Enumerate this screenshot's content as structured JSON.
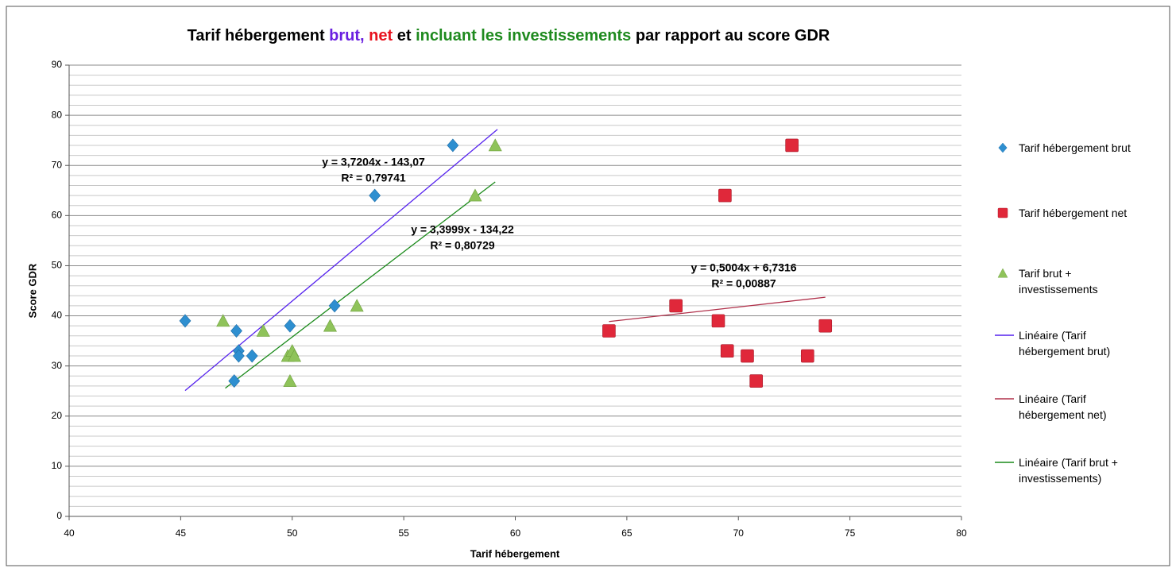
{
  "chart_data": {
    "type": "scatter",
    "title_parts": [
      {
        "text": "Tarif hébergement ",
        "color": "#000000"
      },
      {
        "text": "brut,",
        "color": "#6a1fe0"
      },
      {
        "text": " net",
        "color": "#e8121e"
      },
      {
        "text": " et ",
        "color": "#000000"
      },
      {
        "text": "incluant les investissements",
        "color": "#1e8a1e"
      },
      {
        "text": " par rapport au score GDR",
        "color": "#000000"
      }
    ],
    "x_label": "Tarif hébergement",
    "y_label": "Score GDR",
    "xlim": [
      40,
      80
    ],
    "xticks": [
      40,
      45,
      50,
      55,
      60,
      65,
      70,
      75,
      80
    ],
    "ylim": [
      0,
      90
    ],
    "yticks": [
      0,
      10,
      20,
      30,
      40,
      50,
      60,
      70,
      80,
      90
    ],
    "yminorticks": [
      2,
      4,
      6,
      8,
      12,
      14,
      16,
      18,
      22,
      24,
      26,
      28,
      32,
      34,
      36,
      38,
      42,
      44,
      46,
      48,
      52,
      54,
      56,
      58,
      62,
      64,
      66,
      68,
      72,
      74,
      76,
      78,
      82,
      84,
      86,
      88
    ],
    "grid": true,
    "legend": "right",
    "series": [
      {
        "name": "Tarif hébergement brut",
        "color": "#2e8fd0",
        "marker": "diamond",
        "x": [
          45.2,
          47.5,
          47.6,
          47.6,
          48.2,
          47.4,
          49.9,
          51.9,
          53.7,
          57.2
        ],
        "values": [
          39,
          37,
          33,
          32,
          32,
          27,
          38,
          42,
          64,
          74
        ]
      },
      {
        "name": "Tarif hébergement net",
        "color": "#e0283a",
        "marker": "square",
        "x": [
          64.2,
          67.2,
          69.4,
          69.1,
          69.5,
          70.4,
          70.8,
          72.4,
          73.1,
          73.9
        ],
        "values": [
          37,
          42,
          64,
          39,
          33,
          32,
          27,
          74,
          32,
          38
        ]
      },
      {
        "name": "Tarif brut + investissements",
        "color": "#8fc35a",
        "marker": "triangle",
        "x": [
          46.9,
          48.7,
          49.9,
          49.8,
          50.0,
          50.1,
          51.7,
          52.9,
          58.2,
          59.1
        ],
        "values": [
          39,
          37,
          27,
          32,
          33,
          32,
          38,
          42,
          64,
          74
        ]
      }
    ],
    "trendlines": [
      {
        "name": "Linéaire (Tarif hébergement brut)",
        "color": "#5522ee",
        "label_color": "#6a1fe0",
        "slope": 3.7204,
        "intercept": -143.07,
        "xrange": [
          45.2,
          59.2
        ],
        "equation": "y = 3,7204x - 143,07",
        "r2": "R² = 0,79741"
      },
      {
        "name": "Linéaire (Tarif hébergement net)",
        "color": "#b0304a",
        "label_color": "#e8121e",
        "slope": 0.5004,
        "intercept": 6.7316,
        "xrange": [
          64.2,
          73.9
        ],
        "equation": "y = 0,5004x + 6,7316",
        "r2": "R² = 0,00887"
      },
      {
        "name": "Linéaire (Tarif brut + investissements)",
        "color": "#1a8a1a",
        "label_color": "#1e8a1e",
        "slope": 3.3999,
        "intercept": -134.22,
        "xrange": [
          47.0,
          59.1
        ],
        "equation": "y = 3,3999x - 134,22",
        "r2": "R² = 0,80729"
      }
    ]
  }
}
